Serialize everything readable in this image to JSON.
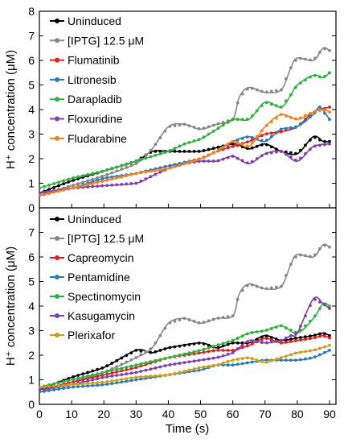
{
  "figure": {
    "xlabel": "Time (s)"
  },
  "chart_data": [
    {
      "type": "line",
      "title": "",
      "xlabel": "",
      "ylabel": "H⁺ concentration (μM)",
      "xlim": [
        0,
        92
      ],
      "ylim": [
        0,
        8
      ],
      "x_ticks": [
        0,
        10,
        20,
        30,
        40,
        50,
        60,
        70,
        80,
        90
      ],
      "y_ticks": [
        0,
        1,
        2,
        3,
        4,
        5,
        6,
        7,
        8
      ],
      "x_tick_labels_shown": false,
      "legend_position": "top-left",
      "series": [
        {
          "name": "Uninduced",
          "color": "#000000",
          "points": [
            [
              0,
              0.6
            ],
            [
              10,
              1.1
            ],
            [
              20,
              1.5
            ],
            [
              30,
              1.9
            ],
            [
              35,
              2.3
            ],
            [
              40,
              2.3
            ],
            [
              50,
              2.3
            ],
            [
              60,
              2.6
            ],
            [
              65,
              2.4
            ],
            [
              70,
              2.6
            ],
            [
              75,
              2.3
            ],
            [
              80,
              2.2
            ],
            [
              85,
              2.9
            ],
            [
              88,
              2.7
            ],
            [
              90,
              2.7
            ]
          ]
        },
        {
          "name": "[IPTG] 12.5 μM",
          "color": "#888888",
          "points": [
            [
              0,
              0.5
            ],
            [
              10,
              0.9
            ],
            [
              20,
              1.3
            ],
            [
              30,
              1.8
            ],
            [
              35,
              2.4
            ],
            [
              40,
              3.3
            ],
            [
              45,
              3.4
            ],
            [
              50,
              3.2
            ],
            [
              55,
              3.4
            ],
            [
              60,
              3.6
            ],
            [
              62,
              4.5
            ],
            [
              65,
              4.9
            ],
            [
              70,
              4.7
            ],
            [
              75,
              4.8
            ],
            [
              78,
              5.7
            ],
            [
              80,
              6.1
            ],
            [
              85,
              6.0
            ],
            [
              88,
              6.5
            ],
            [
              90,
              6.4
            ]
          ]
        },
        {
          "name": "Flumatinib",
          "color": "#e02020",
          "points": [
            [
              0,
              0.5
            ],
            [
              10,
              0.8
            ],
            [
              20,
              1.1
            ],
            [
              30,
              1.4
            ],
            [
              40,
              1.7
            ],
            [
              50,
              2.0
            ],
            [
              55,
              2.3
            ],
            [
              60,
              2.5
            ],
            [
              65,
              2.7
            ],
            [
              70,
              3.0
            ],
            [
              75,
              3.1
            ],
            [
              80,
              3.3
            ],
            [
              85,
              3.9
            ],
            [
              90,
              4.1
            ]
          ]
        },
        {
          "name": "Litronesib",
          "color": "#2a7ab8",
          "points": [
            [
              0,
              0.6
            ],
            [
              10,
              0.8
            ],
            [
              20,
              1.2
            ],
            [
              30,
              1.4
            ],
            [
              40,
              1.7
            ],
            [
              50,
              2.0
            ],
            [
              55,
              2.3
            ],
            [
              60,
              2.7
            ],
            [
              65,
              2.9
            ],
            [
              70,
              2.7
            ],
            [
              75,
              3.2
            ],
            [
              80,
              3.3
            ],
            [
              85,
              3.8
            ],
            [
              87,
              4.1
            ],
            [
              90,
              3.6
            ]
          ]
        },
        {
          "name": "Darapladib",
          "color": "#30b040",
          "points": [
            [
              0,
              0.8
            ],
            [
              10,
              1.2
            ],
            [
              20,
              1.5
            ],
            [
              30,
              1.9
            ],
            [
              40,
              2.3
            ],
            [
              45,
              2.6
            ],
            [
              50,
              2.8
            ],
            [
              55,
              3.2
            ],
            [
              60,
              3.6
            ],
            [
              65,
              3.6
            ],
            [
              70,
              4.3
            ],
            [
              75,
              4.1
            ],
            [
              78,
              4.6
            ],
            [
              80,
              5.0
            ],
            [
              85,
              5.4
            ],
            [
              88,
              5.3
            ],
            [
              90,
              5.5
            ]
          ]
        },
        {
          "name": "Floxuridine",
          "color": "#8040a8",
          "points": [
            [
              0,
              0.6
            ],
            [
              10,
              0.8
            ],
            [
              20,
              0.9
            ],
            [
              30,
              1.0
            ],
            [
              35,
              1.3
            ],
            [
              40,
              1.6
            ],
            [
              45,
              1.8
            ],
            [
              50,
              1.9
            ],
            [
              55,
              1.9
            ],
            [
              60,
              2.1
            ],
            [
              65,
              1.8
            ],
            [
              70,
              2.2
            ],
            [
              75,
              2.3
            ],
            [
              80,
              1.9
            ],
            [
              85,
              2.5
            ],
            [
              90,
              2.6
            ]
          ]
        },
        {
          "name": "Fludarabine",
          "color": "#f08020",
          "points": [
            [
              0,
              0.5
            ],
            [
              10,
              0.8
            ],
            [
              20,
              1.1
            ],
            [
              30,
              1.4
            ],
            [
              40,
              1.6
            ],
            [
              50,
              2.0
            ],
            [
              55,
              2.3
            ],
            [
              60,
              2.7
            ],
            [
              65,
              2.5
            ],
            [
              70,
              3.3
            ],
            [
              75,
              3.8
            ],
            [
              80,
              3.6
            ],
            [
              85,
              3.9
            ],
            [
              88,
              4.0
            ],
            [
              90,
              3.9
            ]
          ]
        }
      ]
    },
    {
      "type": "line",
      "title": "",
      "xlabel": "Time (s)",
      "ylabel": "H⁺ concentration (μM)",
      "xlim": [
        0,
        92
      ],
      "ylim": [
        0,
        8
      ],
      "x_ticks": [
        0,
        10,
        20,
        30,
        40,
        50,
        60,
        70,
        80,
        90
      ],
      "y_ticks": [
        0,
        1,
        2,
        3,
        4,
        5,
        6,
        7
      ],
      "x_tick_labels_shown": true,
      "legend_position": "top-left",
      "series": [
        {
          "name": "Uninduced",
          "color": "#000000",
          "points": [
            [
              0,
              0.6
            ],
            [
              10,
              1.1
            ],
            [
              20,
              1.5
            ],
            [
              30,
              2.2
            ],
            [
              35,
              2.1
            ],
            [
              40,
              2.3
            ],
            [
              50,
              2.5
            ],
            [
              55,
              2.3
            ],
            [
              60,
              2.5
            ],
            [
              65,
              2.5
            ],
            [
              70,
              2.8
            ],
            [
              75,
              2.6
            ],
            [
              80,
              2.7
            ],
            [
              85,
              2.8
            ],
            [
              88,
              2.9
            ],
            [
              90,
              2.8
            ]
          ]
        },
        {
          "name": "[IPTG] 12.5 μM",
          "color": "#888888",
          "points": [
            [
              0,
              0.5
            ],
            [
              10,
              0.9
            ],
            [
              20,
              1.3
            ],
            [
              30,
              1.9
            ],
            [
              35,
              2.3
            ],
            [
              40,
              3.3
            ],
            [
              45,
              3.5
            ],
            [
              50,
              3.3
            ],
            [
              55,
              3.5
            ],
            [
              60,
              3.6
            ],
            [
              62,
              4.5
            ],
            [
              65,
              4.9
            ],
            [
              70,
              4.7
            ],
            [
              75,
              4.8
            ],
            [
              78,
              5.7
            ],
            [
              80,
              6.1
            ],
            [
              85,
              6.0
            ],
            [
              88,
              6.5
            ],
            [
              90,
              6.4
            ]
          ]
        },
        {
          "name": "Capreomycin",
          "color": "#e02020",
          "points": [
            [
              0,
              0.6
            ],
            [
              10,
              0.9
            ],
            [
              20,
              1.2
            ],
            [
              30,
              1.5
            ],
            [
              40,
              1.9
            ],
            [
              50,
              2.1
            ],
            [
              55,
              2.2
            ],
            [
              60,
              2.2
            ],
            [
              65,
              2.4
            ],
            [
              70,
              2.7
            ],
            [
              75,
              2.5
            ],
            [
              80,
              2.6
            ],
            [
              85,
              2.7
            ],
            [
              88,
              2.8
            ],
            [
              90,
              2.7
            ]
          ]
        },
        {
          "name": "Pentamidine",
          "color": "#2a7ab8",
          "points": [
            [
              0,
              0.5
            ],
            [
              10,
              0.7
            ],
            [
              20,
              0.8
            ],
            [
              30,
              1.0
            ],
            [
              40,
              1.2
            ],
            [
              50,
              1.4
            ],
            [
              55,
              1.6
            ],
            [
              60,
              1.6
            ],
            [
              65,
              1.7
            ],
            [
              70,
              1.8
            ],
            [
              75,
              1.8
            ],
            [
              80,
              1.8
            ],
            [
              85,
              1.9
            ],
            [
              90,
              2.2
            ]
          ]
        },
        {
          "name": "Spectinomycin",
          "color": "#30b040",
          "points": [
            [
              0,
              0.7
            ],
            [
              10,
              1.0
            ],
            [
              20,
              1.3
            ],
            [
              30,
              1.6
            ],
            [
              40,
              1.9
            ],
            [
              50,
              2.2
            ],
            [
              55,
              2.4
            ],
            [
              60,
              2.6
            ],
            [
              65,
              2.9
            ],
            [
              70,
              3.0
            ],
            [
              75,
              3.2
            ],
            [
              80,
              2.9
            ],
            [
              85,
              3.5
            ],
            [
              88,
              4.1
            ],
            [
              90,
              4.0
            ]
          ]
        },
        {
          "name": "Kasugamycin",
          "color": "#8040a8",
          "points": [
            [
              0,
              0.6
            ],
            [
              10,
              0.8
            ],
            [
              20,
              1.1
            ],
            [
              30,
              1.3
            ],
            [
              40,
              1.6
            ],
            [
              50,
              1.8
            ],
            [
              55,
              1.9
            ],
            [
              60,
              2.1
            ],
            [
              65,
              2.6
            ],
            [
              70,
              2.5
            ],
            [
              75,
              2.6
            ],
            [
              78,
              2.8
            ],
            [
              80,
              2.9
            ],
            [
              85,
              4.3
            ],
            [
              88,
              4.1
            ],
            [
              90,
              3.9
            ]
          ]
        },
        {
          "name": "Plerixafor",
          "color": "#c8a020",
          "points": [
            [
              0,
              0.7
            ],
            [
              10,
              0.8
            ],
            [
              20,
              0.9
            ],
            [
              30,
              1.1
            ],
            [
              40,
              1.2
            ],
            [
              50,
              1.5
            ],
            [
              55,
              1.6
            ],
            [
              60,
              1.8
            ],
            [
              65,
              1.9
            ],
            [
              70,
              1.7
            ],
            [
              75,
              1.9
            ],
            [
              80,
              2.1
            ],
            [
              85,
              2.2
            ],
            [
              90,
              2.4
            ]
          ]
        }
      ]
    }
  ]
}
